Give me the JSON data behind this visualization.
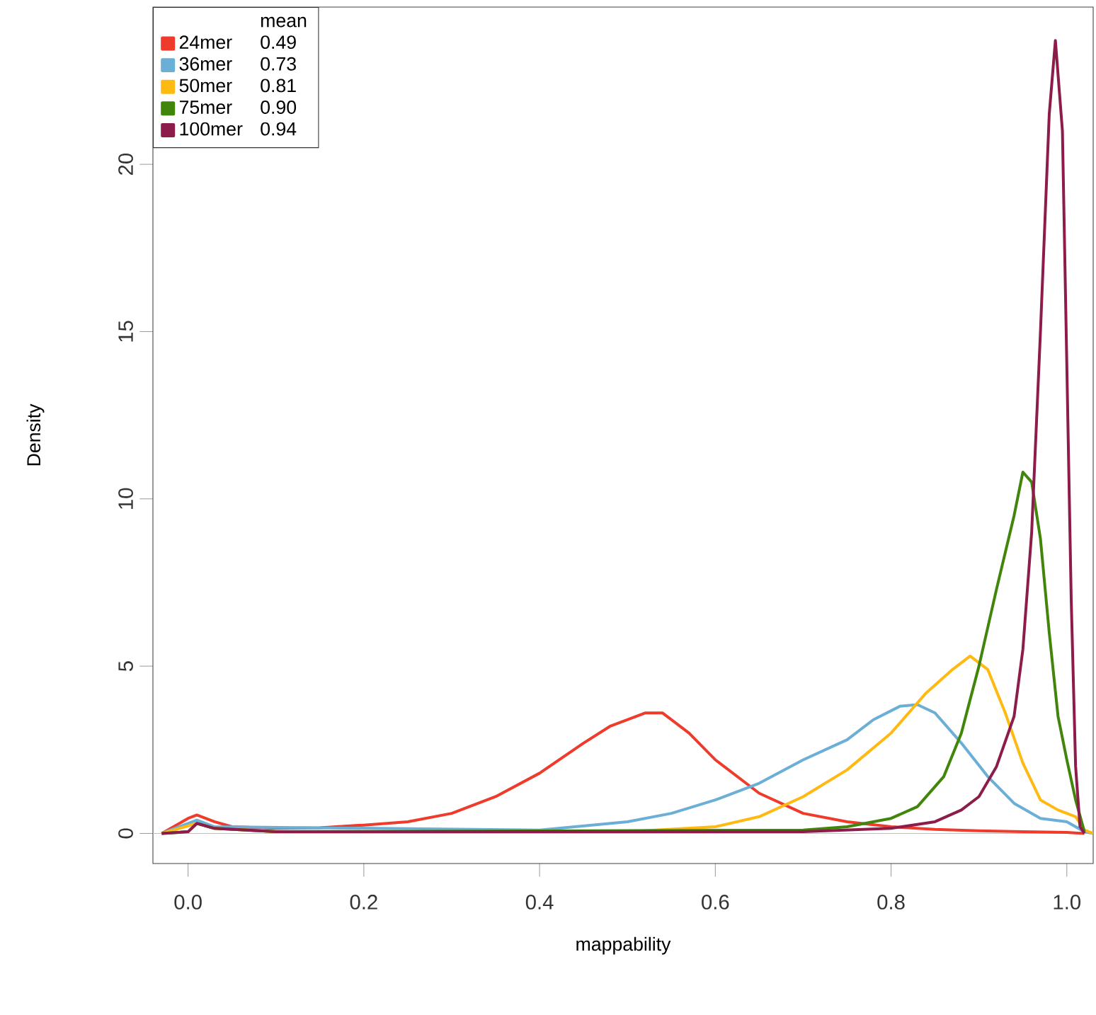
{
  "chart_data": {
    "type": "line",
    "xlabel": "mappability",
    "ylabel": "Density",
    "legend_title": "mean",
    "annotations": [
      "0.49",
      "0.73",
      "0.81",
      "0.90",
      "0.94"
    ],
    "xlim": [
      -0.04,
      1.03
    ],
    "ylim": [
      -0.9,
      24.7
    ],
    "xticks": [
      {
        "value": 0,
        "label": "0.0"
      },
      0.2,
      0.4,
      0.6,
      0.8,
      {
        "value": 1,
        "label": "1.0"
      }
    ],
    "yticks": [
      0,
      5,
      10,
      15,
      20
    ],
    "grid": false,
    "legend": "top left",
    "ref_lines": [
      {
        "axis": "y",
        "value": 0,
        "color": "#bebebe"
      }
    ],
    "series": [
      {
        "name": "24mer",
        "color": "#ef3b2c",
        "x": [
          -0.03,
          0.0,
          0.01,
          0.03,
          0.05,
          0.1,
          0.15,
          0.2,
          0.25,
          0.3,
          0.35,
          0.4,
          0.45,
          0.48,
          0.52,
          0.54,
          0.57,
          0.6,
          0.65,
          0.7,
          0.75,
          0.8,
          0.85,
          0.9,
          0.95,
          1.0,
          1.02
        ],
        "values": [
          0,
          0.45,
          0.55,
          0.35,
          0.2,
          0.15,
          0.17,
          0.25,
          0.35,
          0.6,
          1.1,
          1.8,
          2.7,
          3.2,
          3.6,
          3.6,
          3.0,
          2.2,
          1.2,
          0.6,
          0.35,
          0.2,
          0.12,
          0.08,
          0.05,
          0.03,
          0
        ]
      },
      {
        "name": "36mer",
        "color": "#6baed6",
        "x": [
          -0.03,
          0.0,
          0.01,
          0.03,
          0.1,
          0.3,
          0.4,
          0.5,
          0.55,
          0.6,
          0.65,
          0.7,
          0.75,
          0.78,
          0.81,
          0.83,
          0.85,
          0.88,
          0.91,
          0.94,
          0.97,
          1.0,
          1.02,
          1.03
        ],
        "values": [
          0,
          0.3,
          0.4,
          0.2,
          null,
          null,
          0.1,
          0.35,
          0.6,
          1.0,
          1.5,
          2.2,
          2.8,
          3.4,
          3.8,
          3.85,
          3.6,
          2.7,
          1.7,
          0.9,
          0.45,
          0.35,
          0.05,
          0
        ]
      },
      {
        "name": "50mer",
        "color": "#feb913",
        "x": [
          -0.03,
          0.01,
          0.03,
          0.1,
          0.5,
          0.6,
          0.65,
          0.7,
          0.75,
          0.8,
          0.84,
          0.87,
          0.89,
          0.91,
          0.93,
          0.95,
          0.97,
          0.99,
          1.01,
          1.02,
          1.03
        ],
        "values": [
          0,
          0.3,
          0.15,
          0.05,
          0.05,
          0.2,
          0.5,
          1.1,
          1.9,
          3.0,
          4.2,
          4.9,
          5.3,
          4.9,
          3.6,
          2.1,
          1.0,
          0.7,
          0.5,
          0.1,
          0
        ]
      },
      {
        "name": "75mer",
        "color": "#41850a",
        "x": [
          -0.03,
          0.0,
          0.01,
          0.03,
          0.1,
          0.7,
          0.75,
          0.8,
          0.83,
          0.86,
          0.88,
          0.9,
          0.92,
          0.94,
          0.95,
          0.96,
          0.97,
          0.98,
          0.99,
          1.0,
          1.01,
          1.02
        ],
        "values": [
          0,
          0.05,
          0.3,
          0.15,
          0.05,
          0.1,
          0.2,
          0.45,
          0.8,
          1.7,
          3.0,
          5.0,
          7.3,
          9.5,
          10.8,
          10.5,
          8.8,
          6.0,
          3.5,
          2.2,
          1.0,
          0.05
        ]
      },
      {
        "name": "100mer",
        "color": "#8c1d4b",
        "x": [
          -0.03,
          0.0,
          0.01,
          0.03,
          0.1,
          0.7,
          0.8,
          0.85,
          0.88,
          0.9,
          0.92,
          0.94,
          0.95,
          0.96,
          0.97,
          0.98,
          0.987,
          0.995,
          1.0,
          1.005,
          1.01,
          1.015,
          1.02
        ],
        "values": [
          0,
          0.05,
          0.3,
          0.15,
          0.05,
          0.05,
          0.15,
          0.35,
          0.7,
          1.1,
          2.0,
          3.5,
          5.5,
          9.0,
          15.0,
          21.5,
          23.7,
          21.0,
          14.0,
          7.0,
          2.0,
          0.2,
          0
        ]
      }
    ]
  }
}
